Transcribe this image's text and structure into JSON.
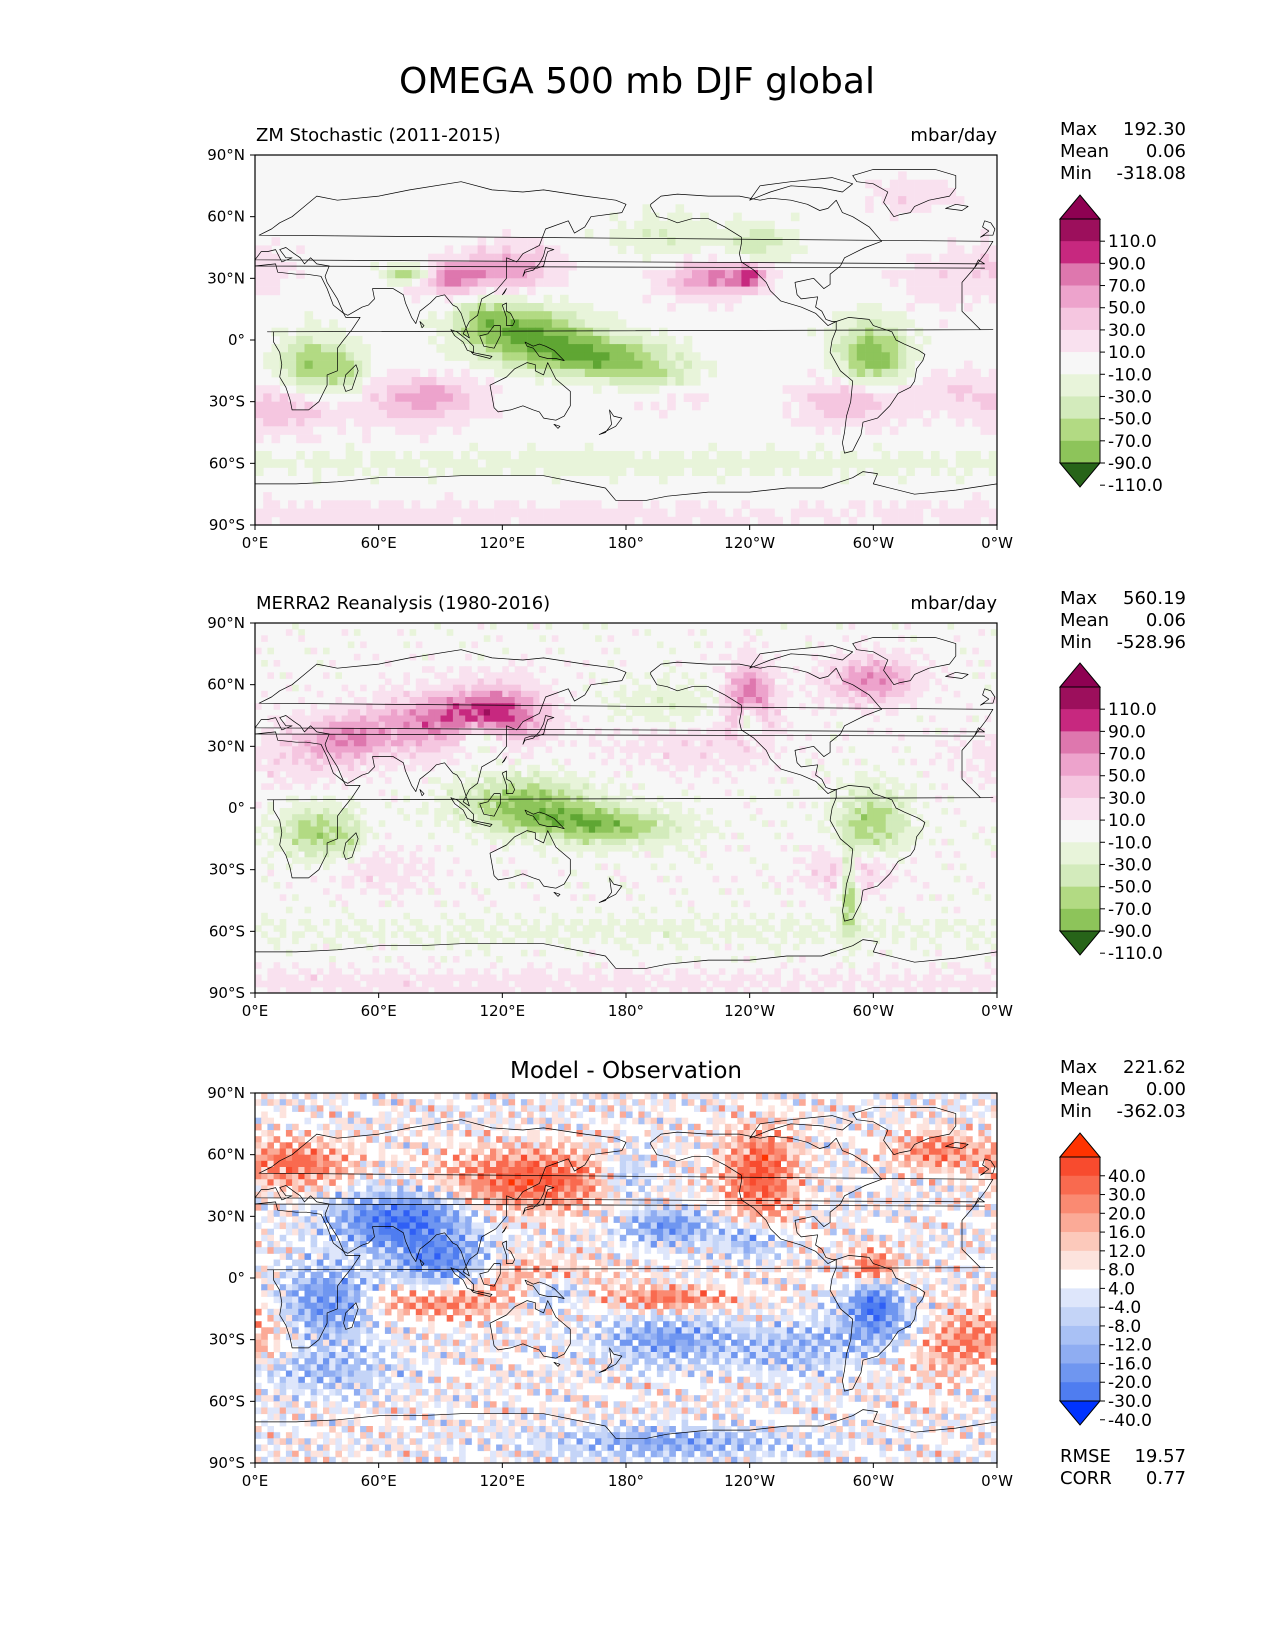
{
  "figure": {
    "title": "OMEGA 500 mb DJF global"
  },
  "axes": {
    "lat_ticks": [
      "90°N",
      "60°N",
      "30°N",
      "0°",
      "30°S",
      "60°S",
      "90°S"
    ],
    "lon_ticks": [
      "0°E",
      "60°E",
      "120°E",
      "180°",
      "120°W",
      "60°W",
      "0°W"
    ]
  },
  "colors": {
    "piyg": [
      "#276419",
      "#3f8b22",
      "#5fa633",
      "#8dc45a",
      "#b2da83",
      "#d3ebbc",
      "#e8f4da",
      "#f7f7f7",
      "#f9e1ef",
      "#f5c6e0",
      "#eda3cc",
      "#de77ae",
      "#c7287f",
      "#9c0f5c",
      "#8e0152"
    ],
    "bwr": [
      "#0033ff",
      "#2f5ff5",
      "#4f7df0",
      "#6f96f0",
      "#8fadf2",
      "#a9c1f5",
      "#c4d4f7",
      "#dee6fb",
      "#ffffff",
      "#fde3dd",
      "#fcc9bb",
      "#fbaa97",
      "#fa8a72",
      "#f96a4f",
      "#f84b2e",
      "#ff3300"
    ]
  },
  "chart_data": [
    {
      "type": "heatmap",
      "id": "model",
      "title_left": "ZM Stochastic (2011-2015)",
      "title_right": "mbar/day",
      "stats": {
        "labels": [
          "Max",
          "Mean",
          "Min"
        ],
        "values": [
          "192.30",
          "0.06",
          "-318.08"
        ]
      },
      "colorbar": {
        "palette": "piyg",
        "levels": [
          "110.0",
          "90.0",
          "70.0",
          "50.0",
          "30.0",
          "10.0",
          "-10.0",
          "-30.0",
          "-50.0",
          "-70.0",
          "-90.0",
          "-110.0"
        ]
      }
    },
    {
      "type": "heatmap",
      "id": "obs",
      "title_left": "MERRA2 Reanalysis (1980-2016)",
      "title_right": "mbar/day",
      "stats": {
        "labels": [
          "Max",
          "Mean",
          "Min"
        ],
        "values": [
          "560.19",
          "0.06",
          "-528.96"
        ]
      },
      "colorbar": {
        "palette": "piyg",
        "levels": [
          "110.0",
          "90.0",
          "70.0",
          "50.0",
          "30.0",
          "10.0",
          "-10.0",
          "-30.0",
          "-50.0",
          "-70.0",
          "-90.0",
          "-110.0"
        ]
      }
    },
    {
      "type": "heatmap",
      "id": "diff",
      "title_center": "Model - Observation",
      "stats": {
        "labels": [
          "Max",
          "Mean",
          "Min"
        ],
        "values": [
          "221.62",
          "0.00",
          "-362.03"
        ]
      },
      "colorbar": {
        "palette": "bwr",
        "levels": [
          "40.0",
          "30.0",
          "20.0",
          "16.0",
          "12.0",
          "8.0",
          "4.0",
          "-4.0",
          "-8.0",
          "-12.0",
          "-16.0",
          "-20.0",
          "-30.0",
          "-40.0"
        ]
      },
      "metrics": {
        "labels": [
          "RMSE",
          "CORR"
        ],
        "values": [
          "19.57",
          "0.77"
        ]
      }
    }
  ]
}
